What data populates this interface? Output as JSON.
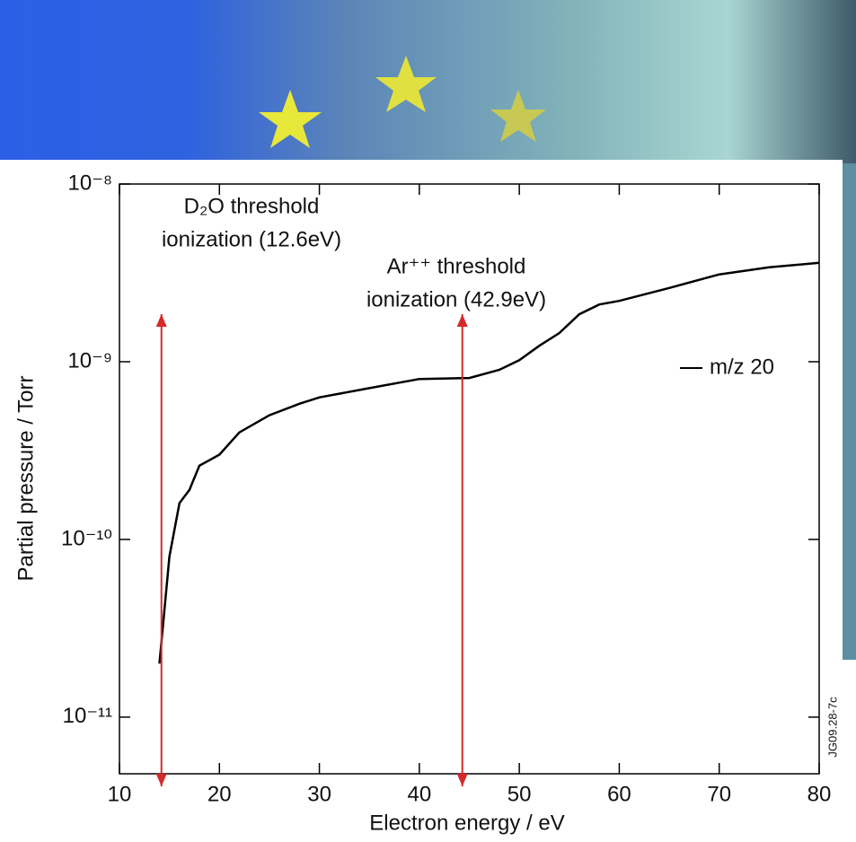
{
  "chart_data": {
    "type": "line",
    "x_label": "Electron energy / eV",
    "y_label": "Partial pressure / Torr",
    "watermark": "JG09.28-7c",
    "x": [
      14,
      15,
      16,
      17,
      18,
      20,
      22,
      25,
      28,
      30,
      35,
      40,
      45,
      48,
      50,
      52,
      54,
      56,
      58,
      60,
      65,
      70,
      75,
      80
    ],
    "series": [
      {
        "name": "m/z 20",
        "color": "#000000",
        "values": [
          2e-11,
          8e-11,
          1.6e-10,
          1.9e-10,
          2.6e-10,
          3e-10,
          4e-10,
          5e-10,
          5.8e-10,
          6.3e-10,
          7.1e-10,
          8e-10,
          8.1e-10,
          9e-10,
          1.02e-09,
          1.23e-09,
          1.45e-09,
          1.85e-09,
          2.1e-09,
          2.2e-09,
          2.6e-09,
          3.1e-09,
          3.4e-09,
          3.6e-09
        ]
      }
    ],
    "xlim": [
      10,
      80
    ],
    "xticks": [
      10,
      20,
      30,
      40,
      50,
      60,
      70,
      80
    ],
    "ylim": [
      4.8e-12,
      1e-08
    ],
    "ylog": true,
    "yticks": [
      {
        "value": 1e-11,
        "label": "10⁻¹¹"
      },
      {
        "value": 1e-10,
        "label": "10⁻¹⁰"
      },
      {
        "value": 1e-09,
        "label": "10⁻⁹"
      },
      {
        "value": 1e-08,
        "label": "10⁻⁸"
      }
    ],
    "annotations": [
      {
        "lines": [
          "D₂O threshold",
          "ionization (12.6eV)"
        ],
        "x": 14.2,
        "color": "#d42a2a"
      },
      {
        "lines": [
          "Ar⁺⁺ threshold",
          "ionization (42.9eV)"
        ],
        "x": 44.3,
        "color": "#d42a2a"
      }
    ]
  }
}
